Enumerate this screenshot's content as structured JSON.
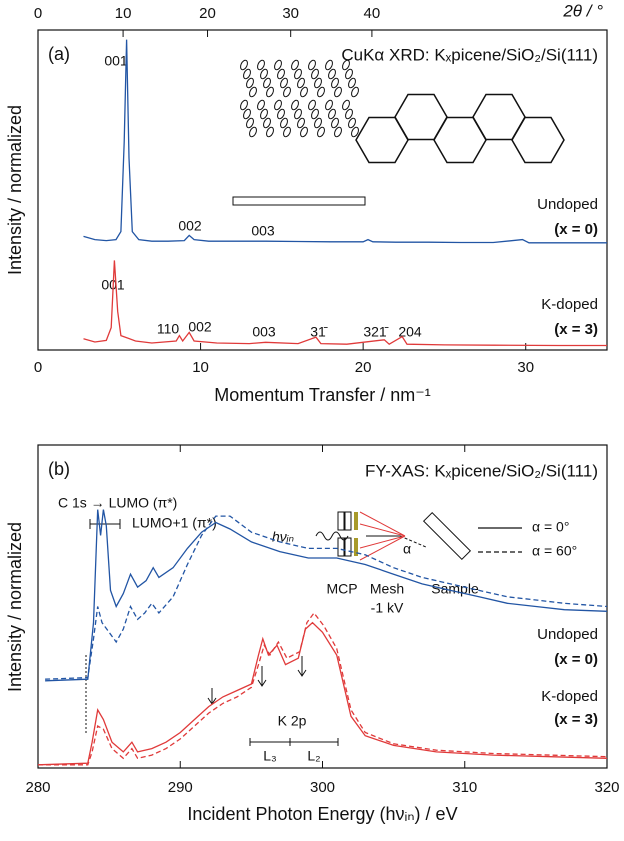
{
  "chart_data": [
    {
      "type": "line",
      "title": "CuKα XRD: Kₓpicene/SiO₂/Si(111)",
      "xlabel": "Momentum Transfer / nm⁻¹",
      "x2label": "2θ / °",
      "ylabel": "Intensity / normalized",
      "xlim": [
        0,
        35
      ],
      "xticks": [
        0,
        10,
        20,
        30
      ],
      "x2lim": [
        0,
        71.3
      ],
      "x2ticks": [
        0,
        10,
        20,
        30,
        40
      ],
      "ylim": [
        0,
        10
      ],
      "series": [
        {
          "color": "#2255a4",
          "dash": "solid",
          "x": [
            2.8,
            3.5,
            4.2,
            4.8,
            5.1,
            5.3,
            5.45,
            5.6,
            5.8,
            6.2,
            7,
            8,
            9,
            9.3,
            9.6,
            10.5,
            12,
            14,
            16,
            18,
            20,
            20.3,
            20.6,
            22,
            24,
            26,
            28,
            29.8,
            30.2,
            32,
            35
          ],
          "values": [
            3.55,
            3.45,
            3.42,
            3.45,
            3.7,
            6.5,
            9.7,
            6.0,
            3.7,
            3.45,
            3.4,
            3.4,
            3.42,
            3.58,
            3.45,
            3.4,
            3.4,
            3.4,
            3.39,
            3.38,
            3.38,
            3.45,
            3.38,
            3.37,
            3.37,
            3.36,
            3.36,
            3.45,
            3.35,
            3.35,
            3.35
          ]
        },
        {
          "color": "#e03a3a",
          "dash": "solid",
          "x": [
            2.8,
            3.5,
            4.2,
            4.5,
            4.7,
            4.9,
            5.1,
            6,
            7,
            8.5,
            8.7,
            8.9,
            9.3,
            9.6,
            11,
            13,
            14,
            16,
            17.1,
            17.4,
            19,
            21.3,
            21.6,
            22.4,
            22.7,
            25,
            28,
            32,
            35
          ],
          "values": [
            0.35,
            0.25,
            0.3,
            0.7,
            2.8,
            1.2,
            0.45,
            0.28,
            0.22,
            0.28,
            0.45,
            0.28,
            0.55,
            0.28,
            0.22,
            0.2,
            0.24,
            0.2,
            0.4,
            0.2,
            0.18,
            0.32,
            0.18,
            0.42,
            0.18,
            0.16,
            0.15,
            0.14,
            0.14
          ]
        }
      ],
      "annotations": [
        "(a)",
        "001",
        "002",
        "003",
        "Undoped",
        "(x = 0)",
        "001",
        "110",
        "002",
        "003",
        "31̄",
        "321̄",
        "204",
        "K-doped",
        "(x = 3)"
      ]
    },
    {
      "type": "line",
      "title": "FY-XAS: Kₓpicene/SiO₂/Si(111)",
      "xlabel": "Incident Photon Energy (hνᵢₙ) / eV",
      "ylabel": "Intensity / normalized",
      "xlim": [
        280,
        320
      ],
      "xticks": [
        280,
        290,
        300,
        310,
        320
      ],
      "ylim": [
        0,
        10
      ],
      "legend": [
        {
          "label": "α = 0°",
          "dash": "solid"
        },
        {
          "label": "α = 60°",
          "dash": "dashed"
        }
      ],
      "series": [
        {
          "color": "#2255a4",
          "dash": "solid",
          "x": [
            280.5,
            283.5,
            283.9,
            284.2,
            284.4,
            284.6,
            284.8,
            285.1,
            285.5,
            286,
            286.5,
            287,
            287.6,
            288.1,
            288.5,
            289.5,
            290.5,
            291.5,
            292.5,
            293.5,
            295,
            297,
            299,
            301,
            303,
            305,
            307,
            309,
            311,
            313,
            315,
            317,
            320
          ],
          "values": [
            2.7,
            2.75,
            4.5,
            8.0,
            7.2,
            8.0,
            7.5,
            5.5,
            5.0,
            5.4,
            6.0,
            5.6,
            5.8,
            6.2,
            5.9,
            6.2,
            6.8,
            7.3,
            7.6,
            7.4,
            7.0,
            6.7,
            6.5,
            6.5,
            6.3,
            6.0,
            5.7,
            5.5,
            5.3,
            5.1,
            5.0,
            4.9,
            4.85
          ]
        },
        {
          "color": "#2255a4",
          "dash": "dashed",
          "x": [
            280.5,
            283.5,
            283.9,
            284.2,
            284.5,
            285,
            285.5,
            286,
            286.5,
            287,
            287.5,
            288,
            288.5,
            289.5,
            290.5,
            291.5,
            292.5,
            293.5,
            295,
            297,
            299,
            301,
            303,
            305,
            307,
            309,
            311,
            313,
            315,
            317,
            320
          ],
          "values": [
            2.75,
            2.8,
            4.0,
            5.0,
            4.5,
            4.2,
            3.9,
            4.3,
            5.0,
            4.6,
            4.8,
            5.1,
            4.8,
            5.3,
            6.3,
            7.2,
            7.8,
            7.8,
            7.3,
            7.0,
            6.8,
            6.8,
            6.6,
            6.2,
            5.9,
            5.7,
            5.5,
            5.3,
            5.2,
            5.1,
            5.0
          ]
        },
        {
          "color": "#e03a3a",
          "dash": "solid",
          "x": [
            280,
            283.5,
            283.8,
            284.2,
            284.6,
            285.2,
            286,
            286.6,
            287,
            288,
            289,
            290,
            291,
            292,
            293,
            294,
            295,
            295.5,
            295.8,
            296.2,
            296.8,
            297.4,
            298.3,
            298.8,
            299.3,
            300,
            301,
            302,
            303,
            305,
            308,
            312,
            316,
            320
          ],
          "values": [
            0.1,
            0.15,
            0.8,
            1.8,
            1.5,
            0.8,
            0.5,
            0.8,
            0.5,
            0.6,
            0.8,
            1.1,
            1.5,
            1.9,
            2.2,
            2.4,
            2.6,
            3.5,
            4.0,
            3.5,
            3.8,
            3.2,
            3.4,
            4.3,
            4.5,
            4.2,
            3.5,
            1.6,
            1.0,
            0.7,
            0.5,
            0.4,
            0.35,
            0.3
          ]
        },
        {
          "color": "#e03a3a",
          "dash": "dashed",
          "x": [
            280,
            283.5,
            283.8,
            284.2,
            284.6,
            285.2,
            286,
            286.6,
            287,
            288,
            289,
            290,
            291,
            292,
            293,
            294,
            295,
            295.5,
            295.9,
            296.3,
            296.9,
            297.5,
            298.4,
            298.9,
            299.4,
            300.1,
            301,
            302,
            303,
            305,
            308,
            312,
            316,
            320
          ],
          "values": [
            0.1,
            0.1,
            0.5,
            1.3,
            1.2,
            0.6,
            0.3,
            0.6,
            0.3,
            0.4,
            0.6,
            0.9,
            1.3,
            1.7,
            2.0,
            2.2,
            2.5,
            3.2,
            3.8,
            3.5,
            3.9,
            3.4,
            3.6,
            4.5,
            4.8,
            4.4,
            3.7,
            1.8,
            1.1,
            0.75,
            0.55,
            0.45,
            0.4,
            0.35
          ]
        }
      ],
      "annotations": [
        "(b)",
        "C 1s → LUMO (π*)",
        "LUMO+1 (π*)",
        "hνᵢₙ",
        "MCP",
        "Mesh",
        "-1 kV",
        "Sample",
        "α",
        "Undoped",
        "(x = 0)",
        "K-doped",
        "(x = 3)",
        "K 2p",
        "L₃",
        "L₂"
      ]
    }
  ]
}
